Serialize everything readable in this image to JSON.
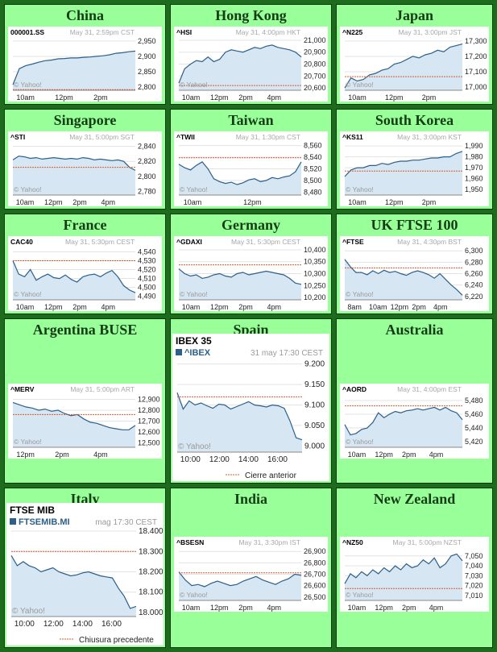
{
  "markets": [
    {
      "name": "China",
      "symbol": "000001.SS",
      "stamp": "May 31, 2:59pm CST",
      "y_ticks": [
        "2,950",
        "2,900",
        "2,850",
        "2,800"
      ],
      "x_ticks": [
        "10am",
        "12pm",
        "2pm"
      ],
      "prev_close": 2792,
      "ylim": [
        2790,
        2960
      ],
      "points": [
        2808,
        2860,
        2870,
        2875,
        2881,
        2886,
        2888,
        2892,
        2893,
        2895,
        2895,
        2897,
        2898,
        2900,
        2902,
        2905,
        2910,
        2912,
        2915,
        2917
      ]
    },
    {
      "name": "Hong Kong",
      "symbol": "^HSI",
      "stamp": "May 31, 4:00pm HKT",
      "y_ticks": [
        "21,000",
        "20,900",
        "20,800",
        "20,700",
        "20,600"
      ],
      "x_ticks": [
        "10am",
        "12pm",
        "2pm",
        "4pm"
      ],
      "prev_close": 20620,
      "ylim": [
        20580,
        21020
      ],
      "points": [
        20640,
        20760,
        20800,
        20830,
        20820,
        20860,
        20820,
        20840,
        20900,
        20920,
        20910,
        20900,
        20920,
        20940,
        20930,
        20950,
        20960,
        20940,
        20930,
        20920,
        20900,
        20860
      ]
    },
    {
      "name": "Japan",
      "symbol": "^N225",
      "stamp": "May 31, 3:00pm JST",
      "y_ticks": [
        "17,300",
        "17,200",
        "17,100",
        "17,000"
      ],
      "x_ticks": [
        "10am",
        "12pm",
        "2pm"
      ],
      "prev_close": 17068,
      "ylim": [
        16980,
        17320
      ],
      "points": [
        16995,
        17060,
        17040,
        17050,
        17080,
        17090,
        17110,
        17120,
        17150,
        17160,
        17180,
        17200,
        17190,
        17210,
        17220,
        17240,
        17230,
        17260,
        17270,
        17280
      ]
    },
    {
      "name": "Singapore",
      "symbol": "^STI",
      "stamp": "May 31, 5:00pm SGT",
      "y_ticks": [
        "2,840",
        "2,820",
        "2,800",
        "2,780"
      ],
      "x_ticks": [
        "10am",
        "12pm",
        "2pm",
        "4pm"
      ],
      "prev_close": 2812,
      "ylim": [
        2775,
        2845
      ],
      "points": [
        2822,
        2827,
        2826,
        2824,
        2825,
        2823,
        2824,
        2825,
        2824,
        2823,
        2824,
        2823,
        2825,
        2824,
        2822,
        2823,
        2822,
        2821,
        2822,
        2820,
        2812,
        2808
      ]
    },
    {
      "name": "Taiwan",
      "symbol": "^TWII",
      "stamp": "May 31, 1:30pm CST",
      "y_ticks": [
        "8,560",
        "8,540",
        "8,520",
        "8,500",
        "8,480"
      ],
      "x_ticks": [
        "10am",
        "12pm"
      ],
      "prev_close": 8539,
      "ylim": [
        8475,
        8565
      ],
      "points": [
        8528,
        8522,
        8518,
        8526,
        8532,
        8520,
        8503,
        8498,
        8495,
        8497,
        8493,
        8496,
        8501,
        8503,
        8498,
        8500,
        8505,
        8503,
        8506,
        8508,
        8515,
        8532
      ]
    },
    {
      "name": "South Korea",
      "symbol": "^KS11",
      "stamp": "May 31, 3:00pm KST",
      "y_ticks": [
        "1,990",
        "1,980",
        "1,970",
        "1,960",
        "1,950"
      ],
      "x_ticks": [
        "10am",
        "12pm",
        "2pm"
      ],
      "prev_close": 1967,
      "ylim": [
        1945,
        1993
      ],
      "points": [
        1962,
        1968,
        1970,
        1970,
        1972,
        1972,
        1974,
        1973,
        1975,
        1976,
        1976,
        1977,
        1977,
        1978,
        1979,
        1979,
        1980,
        1980,
        1983,
        1985
      ]
    },
    {
      "name": "France",
      "symbol": "CAC40",
      "stamp": "May 31, 5:30pm CEST",
      "y_ticks": [
        "4,540",
        "4,530",
        "4,520",
        "4,510",
        "4,500",
        "4,490"
      ],
      "x_ticks": [
        "10am",
        "12pm",
        "2pm",
        "4pm"
      ],
      "prev_close": 4530,
      "ylim": [
        4486,
        4545
      ],
      "points": [
        4530,
        4515,
        4512,
        4520,
        4508,
        4512,
        4515,
        4511,
        4510,
        4514,
        4509,
        4506,
        4512,
        4514,
        4515,
        4512,
        4516,
        4519,
        4512,
        4502,
        4497,
        4494
      ]
    },
    {
      "name": "Germany",
      "symbol": "^GDAXI",
      "stamp": "May 31, 5:30pm CEST",
      "y_ticks": [
        "10,400",
        "10,350",
        "10,300",
        "10,250",
        "10,200"
      ],
      "x_ticks": [
        "10am",
        "12pm",
        "2pm",
        "4pm"
      ],
      "prev_close": 10337,
      "ylim": [
        10190,
        10410
      ],
      "points": [
        10320,
        10300,
        10290,
        10295,
        10280,
        10285,
        10295,
        10300,
        10290,
        10285,
        10300,
        10305,
        10295,
        10300,
        10305,
        10310,
        10305,
        10300,
        10295,
        10280,
        10260,
        10255
      ]
    },
    {
      "name": "UK FTSE 100",
      "symbol": "^FTSE",
      "stamp": "May 31, 4:30pm BST",
      "y_ticks": [
        "6,300",
        "6,280",
        "6,260",
        "6,240",
        "6,220"
      ],
      "x_ticks": [
        "8am",
        "10am",
        "12pm",
        "2pm",
        "4pm"
      ],
      "prev_close": 6270,
      "ylim": [
        6214,
        6306
      ],
      "points": [
        6285,
        6272,
        6262,
        6262,
        6258,
        6265,
        6260,
        6266,
        6262,
        6264,
        6260,
        6257,
        6262,
        6265,
        6262,
        6258,
        6252,
        6260,
        6250,
        6240,
        6232,
        6222
      ]
    },
    {
      "name": "Argentina BUSE",
      "symbol": "^MERV",
      "stamp": "May 31, 5:00pm ART",
      "y_ticks": [
        "12,900",
        "12,800",
        "12,700",
        "12,600",
        "12,500"
      ],
      "x_ticks": [
        "12pm",
        "2pm",
        "4pm"
      ],
      "prev_close": 12760,
      "ylim": [
        12460,
        12940
      ],
      "points": [
        12870,
        12850,
        12830,
        12820,
        12800,
        12810,
        12790,
        12800,
        12770,
        12750,
        12760,
        12720,
        12690,
        12680,
        12660,
        12640,
        12630,
        12620,
        12620,
        12660
      ]
    },
    {
      "name": "Spain",
      "index_title": "IBEX 35",
      "symbol": "^IBEX",
      "stamp": "31 may 17:30 CEST",
      "y_ticks": [
        "9.200",
        "9.150",
        "9.100",
        "9.050",
        "9.000"
      ],
      "x_ticks": [
        "10:00",
        "12:00",
        "14:00",
        "16:00"
      ],
      "legend": "Cierre anterior",
      "prev_close": 9120,
      "ylim": [
        8985,
        9215
      ],
      "points": [
        9130,
        9090,
        9110,
        9100,
        9105,
        9098,
        9092,
        9102,
        9100,
        9090,
        9096,
        9102,
        9108,
        9100,
        9098,
        9095,
        9100,
        9098,
        9092,
        9060,
        9020,
        9015
      ]
    },
    {
      "name": "Australia",
      "symbol": "^AORD",
      "stamp": "May 31, 4:00pm EST",
      "y_ticks": [
        "5,480",
        "5,460",
        "5,440",
        "5,420"
      ],
      "x_ticks": [
        "10am",
        "12pm",
        "2pm",
        "4pm"
      ],
      "prev_close": 5472,
      "ylim": [
        5412,
        5488
      ],
      "points": [
        5445,
        5430,
        5432,
        5438,
        5440,
        5448,
        5462,
        5455,
        5460,
        5464,
        5462,
        5465,
        5466,
        5468,
        5466,
        5468,
        5470,
        5466,
        5470,
        5465,
        5462,
        5452
      ]
    },
    {
      "name": "Italy",
      "index_title": "FTSE MIB",
      "symbol": "FTSEMIB.MI",
      "stamp": "mag 17:30 CEST",
      "y_ticks": [
        "18.400",
        "18.300",
        "18.200",
        "18.100",
        "18.000"
      ],
      "x_ticks": [
        "10:00",
        "12:00",
        "14:00",
        "16:00"
      ],
      "legend": "Chiusura precedente",
      "prev_close": 18300,
      "ylim": [
        17980,
        18420
      ],
      "points": [
        18280,
        18230,
        18250,
        18230,
        18220,
        18200,
        18210,
        18220,
        18200,
        18190,
        18180,
        18185,
        18195,
        18200,
        18190,
        18180,
        18175,
        18170,
        18120,
        18080,
        18020,
        18030
      ]
    },
    {
      "name": "India",
      "symbol": "^BSESN",
      "stamp": "May 31, 3:30pm IST",
      "y_ticks": [
        "26,900",
        "26,800",
        "26,700",
        "26,600",
        "26,500"
      ],
      "x_ticks": [
        "10am",
        "12pm",
        "2pm",
        "4pm"
      ],
      "prev_close": 26712,
      "ylim": [
        26470,
        26930
      ],
      "points": [
        26720,
        26650,
        26600,
        26610,
        26590,
        26620,
        26640,
        26620,
        26600,
        26610,
        26640,
        26660,
        26680,
        26650,
        26630,
        26610,
        26640,
        26660,
        26700,
        26690
      ]
    },
    {
      "name": "New Zealand",
      "symbol": "^NZ50",
      "stamp": "May 31, 5:00pm NZST",
      "y_ticks": [
        "7,050",
        "7,040",
        "7,030",
        "7,020",
        "7,010"
      ],
      "x_ticks": [
        "10am",
        "12pm",
        "2pm",
        "4pm"
      ],
      "prev_close": 7017,
      "ylim": [
        7005,
        7058
      ],
      "points": [
        7022,
        7032,
        7028,
        7034,
        7030,
        7036,
        7032,
        7038,
        7034,
        7040,
        7036,
        7042,
        7038,
        7040,
        7046,
        7042,
        7048,
        7038,
        7042,
        7050,
        7052,
        7045
      ]
    }
  ],
  "watermark": "© Yahoo!",
  "colors": {
    "frame": "#1d6b1d",
    "cell": "#99ff99",
    "title": "#143c14",
    "line": "#2c5f8a",
    "fill": "#d6e6f2",
    "prev_close": "#d85b2e",
    "grid": "#e3e3e3"
  }
}
